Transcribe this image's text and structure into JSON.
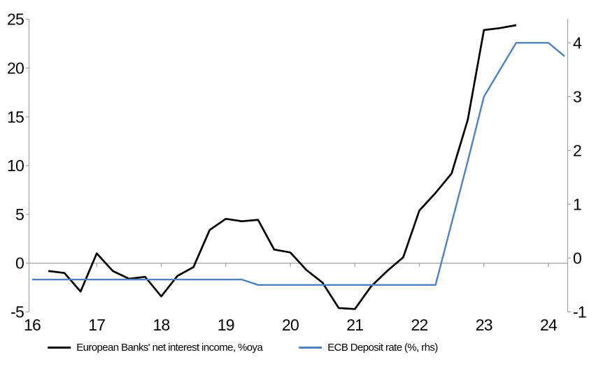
{
  "chart_data": {
    "type": "line",
    "title": "",
    "x_axis": {
      "ticks": [
        16,
        17,
        18,
        19,
        20,
        21,
        22,
        23,
        24
      ],
      "range": [
        16,
        24.35
      ],
      "grid": false
    },
    "left_axis": {
      "ticks": [
        25,
        20,
        15,
        10,
        5,
        0,
        -5
      ],
      "range": [
        -5,
        25
      ],
      "grid": false
    },
    "right_axis": {
      "ticks": [
        4,
        3,
        2,
        1,
        0,
        -1
      ],
      "range": [
        -1.0,
        4.45
      ],
      "grid": false
    },
    "legend_position": "bottom-center",
    "series": [
      {
        "name": "European Banks' net interest income, %oya",
        "axis": "left",
        "color": "#000000",
        "points": [
          [
            16.25,
            -0.8
          ],
          [
            16.5,
            -1.0
          ],
          [
            16.75,
            -2.9
          ],
          [
            17.0,
            1.0
          ],
          [
            17.25,
            -0.8
          ],
          [
            17.5,
            -1.6
          ],
          [
            17.75,
            -1.4
          ],
          [
            18.0,
            -3.4
          ],
          [
            18.25,
            -1.3
          ],
          [
            18.5,
            -0.4
          ],
          [
            18.75,
            3.4
          ],
          [
            19.0,
            4.55
          ],
          [
            19.25,
            4.3
          ],
          [
            19.5,
            4.45
          ],
          [
            19.75,
            1.4
          ],
          [
            20.0,
            1.1
          ],
          [
            20.25,
            -0.7
          ],
          [
            20.5,
            -2.0
          ],
          [
            20.75,
            -4.6
          ],
          [
            21.0,
            -4.7
          ],
          [
            21.25,
            -2.4
          ],
          [
            21.5,
            -0.8
          ],
          [
            21.75,
            0.6
          ],
          [
            22.0,
            5.4
          ],
          [
            22.25,
            7.2
          ],
          [
            22.5,
            9.2
          ],
          [
            22.75,
            14.7
          ],
          [
            23.0,
            23.9
          ],
          [
            23.25,
            24.1
          ],
          [
            23.5,
            24.4
          ]
        ]
      },
      {
        "name": "ECB Deposit rate (%, rhs)",
        "axis": "right",
        "color": "#4f81bd",
        "points": [
          [
            16.0,
            -0.4
          ],
          [
            16.25,
            -0.4
          ],
          [
            16.5,
            -0.4
          ],
          [
            16.75,
            -0.4
          ],
          [
            17.0,
            -0.4
          ],
          [
            17.25,
            -0.4
          ],
          [
            17.5,
            -0.4
          ],
          [
            17.75,
            -0.4
          ],
          [
            18.0,
            -0.4
          ],
          [
            18.25,
            -0.4
          ],
          [
            18.5,
            -0.4
          ],
          [
            18.75,
            -0.4
          ],
          [
            19.0,
            -0.4
          ],
          [
            19.25,
            -0.4
          ],
          [
            19.5,
            -0.5
          ],
          [
            19.75,
            -0.5
          ],
          [
            20.0,
            -0.5
          ],
          [
            20.25,
            -0.5
          ],
          [
            20.5,
            -0.5
          ],
          [
            20.75,
            -0.5
          ],
          [
            21.0,
            -0.5
          ],
          [
            21.25,
            -0.5
          ],
          [
            21.5,
            -0.5
          ],
          [
            21.75,
            -0.5
          ],
          [
            22.0,
            -0.5
          ],
          [
            22.25,
            -0.5
          ],
          [
            22.5,
            0.65
          ],
          [
            22.75,
            1.8
          ],
          [
            23.0,
            3.0
          ],
          [
            23.25,
            3.5
          ],
          [
            23.5,
            4.0
          ],
          [
            23.75,
            4.0
          ],
          [
            24.0,
            4.0
          ],
          [
            24.25,
            3.75
          ]
        ]
      }
    ],
    "axis_color": "#a6a6a6"
  }
}
